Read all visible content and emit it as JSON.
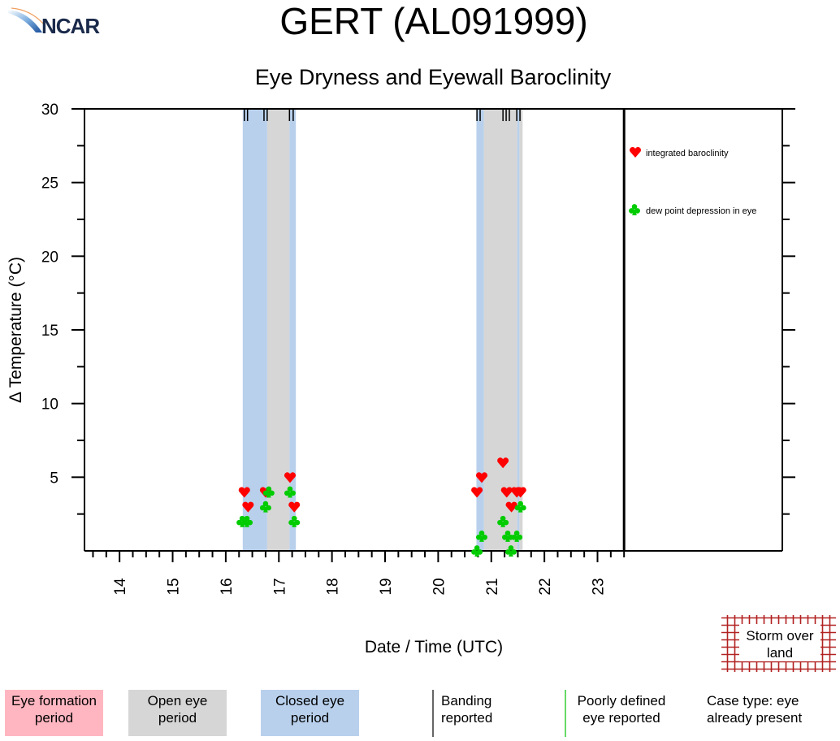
{
  "logo": {
    "text": "NCAR"
  },
  "chart_data": {
    "type": "scatter",
    "title": "GERT (AL091999)",
    "subtitle": "Eye Dryness and Eyewall Baroclinity",
    "xlabel": "Date / Time (UTC)",
    "ylabel": "Δ Temperature (°C)",
    "xlim": [
      13.34,
      26.48
    ],
    "ylim": [
      0,
      30
    ],
    "xticks": [
      14,
      15,
      16,
      17,
      18,
      19,
      20,
      21,
      22,
      23
    ],
    "yticks": [
      5,
      10,
      15,
      20,
      25,
      30
    ],
    "data_end_line": 23.5,
    "grid": false,
    "legend_position": "right",
    "series": [
      {
        "name": "integrated baroclinity",
        "marker": "heart",
        "color": "#ff0000",
        "x": [
          16.35,
          16.42,
          16.75,
          17.21,
          17.29,
          20.73,
          20.82,
          21.22,
          21.29,
          21.38,
          21.48,
          21.55
        ],
        "y": [
          4,
          3,
          4,
          5,
          3,
          4,
          5,
          6,
          4,
          3,
          4,
          4
        ]
      },
      {
        "name": "dew point depression in eye",
        "marker": "club",
        "color": "#00cc00",
        "x": [
          16.31,
          16.4,
          16.75,
          16.81,
          17.21,
          17.29,
          20.73,
          20.82,
          21.22,
          21.31,
          21.37,
          21.48,
          21.55
        ],
        "y": [
          2,
          2,
          3,
          4,
          4,
          2,
          0,
          1,
          2,
          1,
          0,
          1,
          3
        ]
      }
    ],
    "periods": [
      {
        "type": "closed",
        "start": 16.32,
        "end": 16.78
      },
      {
        "type": "open",
        "start": 16.78,
        "end": 17.2
      },
      {
        "type": "closed",
        "start": 17.2,
        "end": 17.32
      },
      {
        "type": "closed",
        "start": 20.72,
        "end": 20.86
      },
      {
        "type": "open",
        "start": 20.86,
        "end": 21.49
      },
      {
        "type": "closed",
        "start": 21.49,
        "end": 21.53
      },
      {
        "type": "open",
        "start": 21.53,
        "end": 21.59
      }
    ],
    "banding_reports": [
      16.35,
      16.41,
      16.72,
      16.78,
      17.2,
      17.27,
      20.73,
      20.79,
      21.22,
      21.28,
      21.34,
      21.48,
      21.54
    ],
    "colors": {
      "formation": "#ffb6c1",
      "open": "#d6d6d6",
      "closed": "#b8d0ec",
      "land": "#b22222",
      "banding": "#000000",
      "poorly_defined": "#33cc33"
    }
  },
  "bottom_legend": {
    "formation": "Eye formation period",
    "open": "Open eye period",
    "closed": "Closed eye period",
    "banding": "Banding reported",
    "poorly": "Poorly defined eye reported",
    "case_type": "Case type: eye already present",
    "land": "Storm over land"
  }
}
